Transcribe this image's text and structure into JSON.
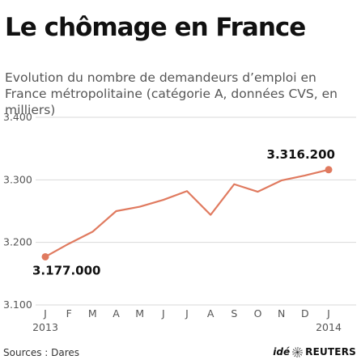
{
  "title": "Le chômage en France",
  "subtitle": "Evolution du nombre de demandeurs d’emploi en France métropolitaine (catégorie A, données CVS, en milliers)",
  "source": "Sources : Dares",
  "logo": {
    "ide": "idé",
    "reuters": "REUTERS"
  },
  "colors": {
    "line": "#e07a5f",
    "grid": "#d9d9d9",
    "axis_text": "#555555"
  },
  "chart_data": {
    "type": "line",
    "title": "Le chômage en France",
    "x": [
      "J",
      "F",
      "M",
      "A",
      "M",
      "J",
      "J",
      "A",
      "S",
      "O",
      "N",
      "D",
      "J"
    ],
    "year_labels": [
      "2013",
      "2014"
    ],
    "ylim": [
      3100,
      3400
    ],
    "yticks": [
      3100,
      3200,
      3300,
      3400
    ],
    "ytick_labels": [
      "3.100",
      "3.200",
      "3.300",
      "3.400"
    ],
    "series": [
      {
        "values": [
          3177,
          3198,
          3217,
          3250,
          3257,
          3268,
          3282,
          3244,
          3293,
          3281,
          3299,
          3307,
          3316.2
        ]
      }
    ],
    "annotations": [
      {
        "index": 0,
        "label": "3.177.000"
      },
      {
        "index": 12,
        "label": "3.316.200"
      }
    ],
    "grid": true
  }
}
